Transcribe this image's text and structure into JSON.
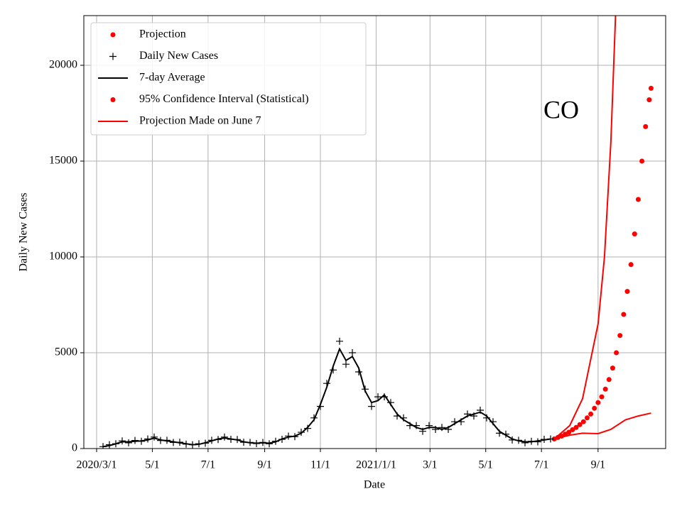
{
  "chart_data": {
    "type": "line",
    "annotation": "CO",
    "x_label": "Date",
    "y_label": "Daily New Cases",
    "xlim": [
      "2020-02-16",
      "2021-11-14"
    ],
    "ylim": [
      0,
      22593
    ],
    "grid": true,
    "legend": "upper left",
    "xticks": [
      {
        "value": "2020-03-01",
        "label": "2020/3/1"
      },
      {
        "value": "2020-05-01",
        "label": "5/1"
      },
      {
        "value": "2020-07-01",
        "label": "7/1"
      },
      {
        "value": "2020-09-01",
        "label": "9/1"
      },
      {
        "value": "2020-11-01",
        "label": "11/1"
      },
      {
        "value": "2021-01-01",
        "label": "2021/1/1"
      },
      {
        "value": "2021-03-01",
        "label": "3/1"
      },
      {
        "value": "2021-05-01",
        "label": "5/1"
      },
      {
        "value": "2021-07-01",
        "label": "7/1"
      },
      {
        "value": "2021-09-01",
        "label": "9/1"
      }
    ],
    "yticks": [
      0,
      5000,
      10000,
      15000,
      20000
    ],
    "series": [
      {
        "name": "Projection",
        "kind": "dots",
        "color": "#ff0000",
        "x": [
          "2021-07-15",
          "2021-07-19",
          "2021-07-23",
          "2021-07-27",
          "2021-07-31",
          "2021-08-04",
          "2021-08-08",
          "2021-08-12",
          "2021-08-16",
          "2021-08-20",
          "2021-08-24",
          "2021-08-28",
          "2021-09-01",
          "2021-09-05",
          "2021-09-09",
          "2021-09-13",
          "2021-09-17",
          "2021-09-21",
          "2021-09-25",
          "2021-09-29",
          "2021-10-03",
          "2021-10-07",
          "2021-10-11",
          "2021-10-15",
          "2021-10-19",
          "2021-10-23",
          "2021-10-27",
          "2021-10-29"
        ],
        "values": [
          500,
          580,
          650,
          750,
          850,
          980,
          1100,
          1250,
          1400,
          1600,
          1800,
          2100,
          2400,
          2700,
          3100,
          3600,
          4200,
          5000,
          5900,
          7000,
          8200,
          9600,
          11200,
          13000,
          15000,
          16800,
          18200,
          18800
        ]
      },
      {
        "name": "Daily New Cases",
        "kind": "plus",
        "color": "#000000",
        "x": [
          "2020-03-08",
          "2020-03-15",
          "2020-03-22",
          "2020-03-29",
          "2020-04-05",
          "2020-04-12",
          "2020-04-19",
          "2020-04-26",
          "2020-05-03",
          "2020-05-10",
          "2020-05-17",
          "2020-05-24",
          "2020-05-31",
          "2020-06-07",
          "2020-06-14",
          "2020-06-21",
          "2020-06-28",
          "2020-07-05",
          "2020-07-12",
          "2020-07-19",
          "2020-07-26",
          "2020-08-02",
          "2020-08-09",
          "2020-08-16",
          "2020-08-23",
          "2020-08-30",
          "2020-09-06",
          "2020-09-13",
          "2020-09-20",
          "2020-09-27",
          "2020-10-04",
          "2020-10-11",
          "2020-10-18",
          "2020-10-25",
          "2020-11-01",
          "2020-11-08",
          "2020-11-15",
          "2020-11-22",
          "2020-11-29",
          "2020-12-06",
          "2020-12-13",
          "2020-12-20",
          "2020-12-27",
          "2021-01-03",
          "2021-01-10",
          "2021-01-17",
          "2021-01-24",
          "2021-01-31",
          "2021-02-07",
          "2021-02-14",
          "2021-02-21",
          "2021-02-28",
          "2021-03-07",
          "2021-03-14",
          "2021-03-21",
          "2021-03-28",
          "2021-04-04",
          "2021-04-11",
          "2021-04-18",
          "2021-04-25",
          "2021-05-02",
          "2021-05-09",
          "2021-05-16",
          "2021-05-23",
          "2021-05-30",
          "2021-06-06",
          "2021-06-13",
          "2021-06-20",
          "2021-06-27",
          "2021-07-04",
          "2021-07-11"
        ],
        "values": [
          100,
          200,
          250,
          400,
          300,
          420,
          380,
          500,
          600,
          420,
          430,
          320,
          330,
          230,
          200,
          250,
          280,
          430,
          470,
          600,
          480,
          470,
          330,
          320,
          260,
          320,
          250,
          380,
          480,
          650,
          620,
          850,
          1050,
          1600,
          2200,
          3400,
          4100,
          5600,
          4400,
          5000,
          4000,
          3100,
          2200,
          2700,
          2700,
          2400,
          1700,
          1600,
          1200,
          1200,
          900,
          1200,
          1000,
          1100,
          1000,
          1400,
          1400,
          1800,
          1700,
          2000,
          1600,
          1400,
          800,
          750,
          450,
          430,
          300,
          380,
          350,
          480,
          500
        ]
      },
      {
        "name": "7-day Average",
        "kind": "line",
        "color": "#000000",
        "x": [
          "2020-03-08",
          "2020-03-15",
          "2020-03-22",
          "2020-03-29",
          "2020-04-05",
          "2020-04-12",
          "2020-04-19",
          "2020-04-26",
          "2020-05-03",
          "2020-05-10",
          "2020-05-17",
          "2020-05-24",
          "2020-05-31",
          "2020-06-07",
          "2020-06-14",
          "2020-06-21",
          "2020-06-28",
          "2020-07-05",
          "2020-07-12",
          "2020-07-19",
          "2020-07-26",
          "2020-08-02",
          "2020-08-09",
          "2020-08-16",
          "2020-08-23",
          "2020-08-30",
          "2020-09-06",
          "2020-09-13",
          "2020-09-20",
          "2020-09-27",
          "2020-10-04",
          "2020-10-11",
          "2020-10-18",
          "2020-10-25",
          "2020-11-01",
          "2020-11-08",
          "2020-11-15",
          "2020-11-22",
          "2020-11-29",
          "2020-12-06",
          "2020-12-13",
          "2020-12-20",
          "2020-12-27",
          "2021-01-03",
          "2021-01-10",
          "2021-01-17",
          "2021-01-24",
          "2021-01-31",
          "2021-02-07",
          "2021-02-14",
          "2021-02-21",
          "2021-02-28",
          "2021-03-07",
          "2021-03-14",
          "2021-03-21",
          "2021-03-28",
          "2021-04-04",
          "2021-04-11",
          "2021-04-18",
          "2021-04-25",
          "2021-05-02",
          "2021-05-09",
          "2021-05-16",
          "2021-05-23",
          "2021-05-30",
          "2021-06-06",
          "2021-06-13",
          "2021-06-20",
          "2021-06-27",
          "2021-07-04",
          "2021-07-11"
        ],
        "values": [
          100,
          150,
          250,
          350,
          350,
          380,
          400,
          450,
          550,
          450,
          400,
          350,
          300,
          250,
          200,
          220,
          300,
          400,
          500,
          550,
          500,
          450,
          350,
          300,
          280,
          300,
          280,
          350,
          500,
          600,
          650,
          800,
          1100,
          1500,
          2300,
          3200,
          4300,
          5200,
          4600,
          4800,
          4200,
          3000,
          2400,
          2500,
          2800,
          2300,
          1800,
          1500,
          1300,
          1100,
          1000,
          1100,
          1100,
          1000,
          1100,
          1300,
          1500,
          1700,
          1800,
          1900,
          1700,
          1300,
          900,
          700,
          500,
          400,
          350,
          350,
          400,
          450,
          500
        ]
      },
      {
        "name": "95% Confidence Interval (Statistical)",
        "kind": "dots",
        "color": "#ff0000",
        "x": [],
        "values": []
      },
      {
        "name": "Projection Made on June 7",
        "kind": "line",
        "color": "#ff0000",
        "x": [
          "2021-07-15",
          "2021-08-01",
          "2021-08-15",
          "2021-09-01",
          "2021-09-08",
          "2021-09-15",
          "2021-09-22"
        ],
        "values": [
          500,
          1200,
          2600,
          6500,
          10000,
          16000,
          25000
        ],
        "lower": {
          "x": [
            "2021-07-15",
            "2021-08-01",
            "2021-08-15",
            "2021-09-01",
            "2021-09-15",
            "2021-10-01",
            "2021-10-15",
            "2021-10-29"
          ],
          "values": [
            500,
            700,
            800,
            780,
            1000,
            1500,
            1700,
            1850
          ]
        }
      }
    ]
  }
}
